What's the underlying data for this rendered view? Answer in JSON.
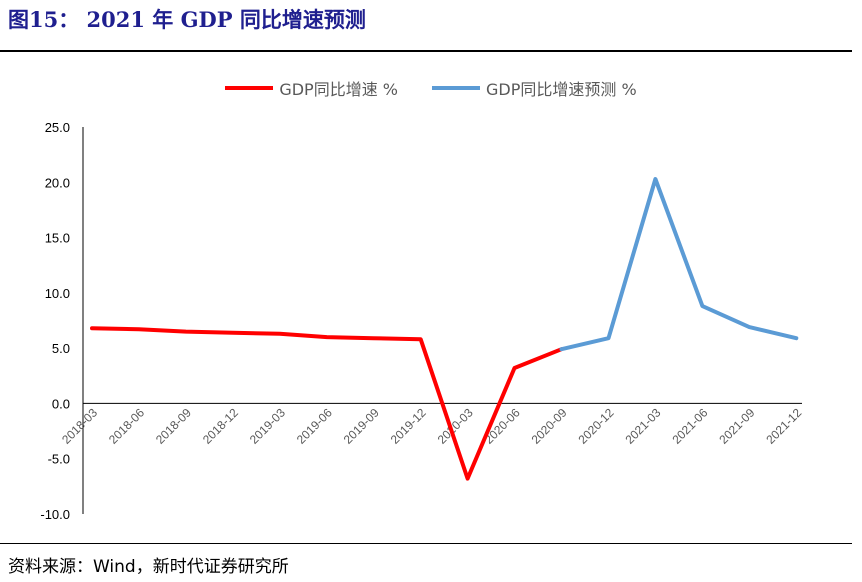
{
  "header": {
    "title": "图15： 2021 年 GDP 同比增速预测"
  },
  "footer": {
    "source": "资料来源：Wind，新时代证券研究所"
  },
  "colors": {
    "actual": "#ff0000",
    "forecast": "#5b9bd5",
    "axis": "#000000",
    "tick_text": "#595959"
  },
  "chart_data": {
    "type": "line",
    "title": "",
    "xlabel": "",
    "ylabel": "",
    "ylim": [
      -10,
      25
    ],
    "yticks": [
      "25.0",
      "20.0",
      "15.0",
      "10.0",
      "5.0",
      "0.0",
      "-5.0",
      "-10.0"
    ],
    "ytick_values": [
      25,
      20,
      15,
      10,
      5,
      0,
      -5,
      -10
    ],
    "categories": [
      "2018-03",
      "2018-06",
      "2018-09",
      "2018-12",
      "2019-03",
      "2019-06",
      "2019-09",
      "2019-12",
      "2020-03",
      "2020-06",
      "2020-09",
      "2020-12",
      "2021-03",
      "2021-06",
      "2021-09",
      "2021-12"
    ],
    "grid": false,
    "legend_position": "top",
    "series": [
      {
        "name": "GDP同比增速 %",
        "color": "#ff0000",
        "values": [
          6.8,
          6.7,
          6.5,
          6.4,
          6.3,
          6.0,
          5.9,
          5.8,
          -6.8,
          3.2,
          4.9,
          null,
          null,
          null,
          null,
          null
        ]
      },
      {
        "name": "GDP同比增速预测 %",
        "color": "#5b9bd5",
        "values": [
          null,
          null,
          null,
          null,
          null,
          null,
          null,
          null,
          null,
          null,
          4.9,
          5.9,
          20.3,
          8.8,
          6.9,
          5.9
        ]
      }
    ]
  }
}
